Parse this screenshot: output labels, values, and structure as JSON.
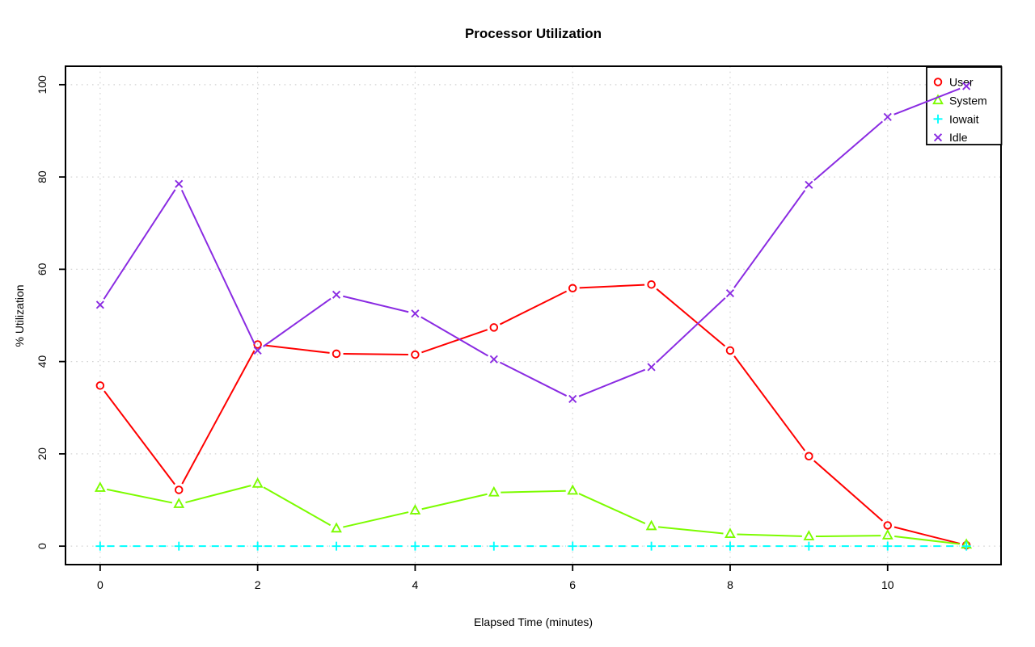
{
  "title": "Processor Utilization",
  "chart_data": {
    "type": "line",
    "title": "Processor Utilization",
    "xlabel": "Elapsed Time (minutes)",
    "ylabel": "% Utilization",
    "x": [
      0,
      1,
      2,
      3,
      4,
      5,
      6,
      7,
      8,
      9,
      10,
      11
    ],
    "xticks": [
      0,
      2,
      4,
      6,
      8,
      10
    ],
    "yticks": [
      0,
      20,
      40,
      60,
      80,
      100
    ],
    "xlim": [
      -0.44,
      11.44
    ],
    "ylim": [
      -4,
      104
    ],
    "grid": true,
    "grid_color": "#d3d3d3",
    "axis_color": "#000000",
    "background": "#ffffff",
    "legend_position": "top-right",
    "series": [
      {
        "name": "User",
        "color": "#ff0000",
        "marker": "circle",
        "linestyle": "solid",
        "values": [
          34.8,
          12.2,
          43.7,
          41.7,
          41.5,
          47.4,
          55.9,
          56.7,
          42.4,
          19.5,
          4.5,
          0.2
        ]
      },
      {
        "name": "System",
        "color": "#7cfc00",
        "marker": "triangle",
        "linestyle": "solid",
        "values": [
          12.6,
          9.1,
          13.5,
          3.8,
          7.7,
          11.6,
          12.0,
          4.3,
          2.6,
          2.1,
          2.3,
          0.3
        ]
      },
      {
        "name": "Iowait",
        "color": "#00ffff",
        "marker": "plus",
        "linestyle": "dashed",
        "values": [
          0,
          0,
          0,
          0,
          0,
          0,
          0,
          0,
          0,
          0,
          0,
          0
        ]
      },
      {
        "name": "Idle",
        "color": "#8a2be2",
        "marker": "x",
        "linestyle": "solid",
        "values": [
          52.3,
          78.5,
          42.4,
          54.5,
          50.4,
          40.5,
          31.9,
          38.8,
          54.8,
          78.3,
          93.0,
          99.7
        ]
      }
    ]
  }
}
